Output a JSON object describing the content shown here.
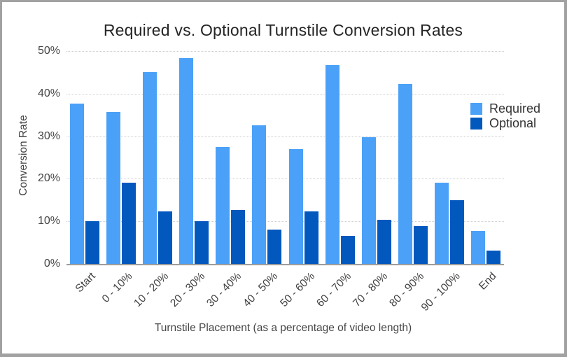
{
  "frame": {
    "background": "#ffffff",
    "border_color": "#a1a1a1"
  },
  "chart_data": {
    "type": "bar",
    "title": "Required vs. Optional Turnstile Conversion Rates",
    "xlabel": "Turnstile Placement (as a percentage of video length)",
    "ylabel": "Conversion Rate",
    "categories": [
      "Start",
      "0 - 10%",
      "10 - 20%",
      "20 - 30%",
      "30 - 40%",
      "40 - 50%",
      "50 - 60%",
      "60 - 70%",
      "70 - 80%",
      "80 - 90%",
      "90 - 100%",
      "End"
    ],
    "series": [
      {
        "name": "Required",
        "color": "#4ba1f7",
        "values": [
          37.7,
          35.7,
          45.0,
          48.4,
          27.4,
          32.6,
          27.0,
          46.8,
          29.8,
          42.2,
          19.1,
          7.8
        ]
      },
      {
        "name": "Optional",
        "color": "#0358be",
        "values": [
          10.1,
          19.1,
          12.3,
          10.1,
          12.7,
          8.0,
          12.4,
          6.6,
          10.3,
          8.9,
          15.0,
          3.2
        ]
      }
    ],
    "y_ticks": [
      "0%",
      "10%",
      "20%",
      "30%",
      "40%",
      "50%"
    ],
    "ylim": [
      0,
      50
    ],
    "grid": "horizontal-dotted",
    "legend_position": "right",
    "unit": "%"
  }
}
